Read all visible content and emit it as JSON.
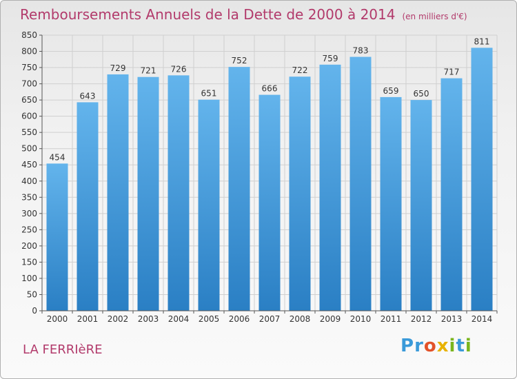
{
  "title": "Remboursements Annuels de la Dette de 2000 à 2014",
  "unit_note": "(en milliers d'€)",
  "commune": "LA FERRIèRE",
  "logo": {
    "text": "Proxiti",
    "letter_colors": [
      "#3a9ad9",
      "#3a9ad9",
      "#e2522a",
      "#e8b200",
      "#7ab51d",
      "#3a9ad9",
      "#7ab51d"
    ]
  },
  "colors": {
    "title": "#b23a6b",
    "bar_top": "#63b4ec",
    "bar_bottom": "#2a7fc4",
    "grid": "#cfcfcf"
  },
  "chart_data": {
    "type": "bar",
    "title": "Remboursements Annuels de la Dette de 2000 à 2014",
    "subtitle": "(en milliers d'€)",
    "categories": [
      "2000",
      "2001",
      "2002",
      "2003",
      "2004",
      "2005",
      "2006",
      "2007",
      "2008",
      "2009",
      "2010",
      "2011",
      "2012",
      "2013",
      "2014"
    ],
    "values": [
      454,
      643,
      729,
      721,
      726,
      651,
      752,
      666,
      722,
      759,
      783,
      659,
      650,
      717,
      811
    ],
    "xlabel": "",
    "ylabel": "",
    "ylim": [
      0,
      850
    ],
    "yticks": [
      0,
      50,
      100,
      150,
      200,
      250,
      300,
      350,
      400,
      450,
      500,
      550,
      600,
      650,
      700,
      750,
      800,
      850
    ],
    "grid": true,
    "data_labels": true
  }
}
